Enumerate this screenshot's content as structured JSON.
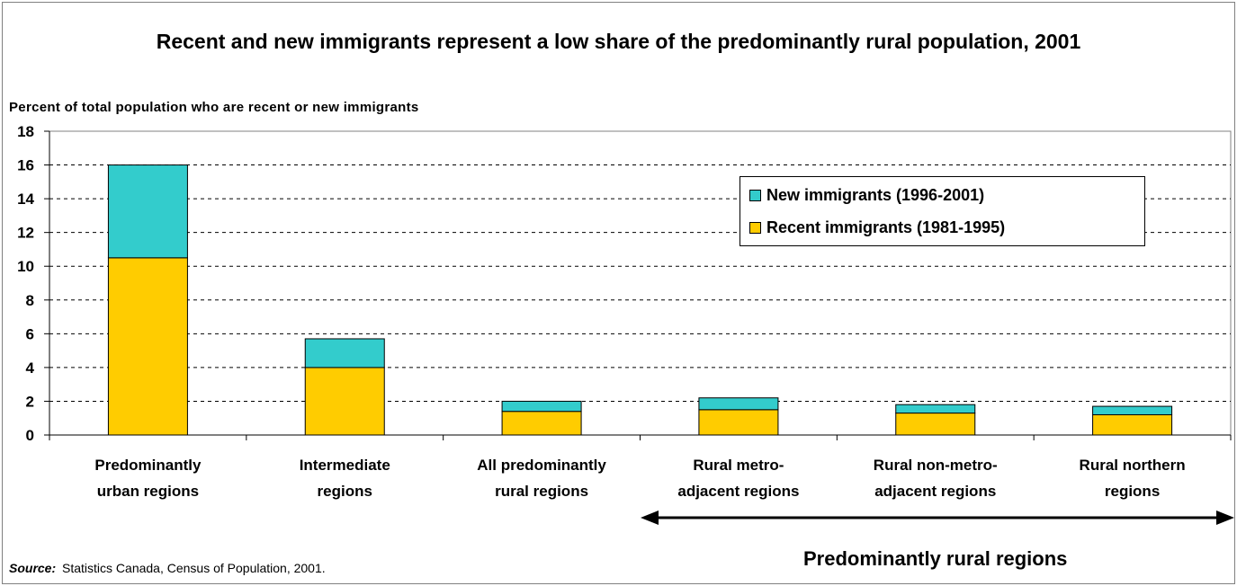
{
  "chart_data": {
    "type": "bar",
    "stacked": true,
    "title": "Recent and new immigrants represent a low share of the predominantly rural population, 2001",
    "ylabel": "Percent of total population who are recent or new immigrants",
    "xlabel": "",
    "ylim": [
      0,
      18
    ],
    "yticks": [
      0,
      2,
      4,
      6,
      8,
      10,
      12,
      14,
      16,
      18
    ],
    "grid": "horizontal dashed",
    "legend_position": "top-right",
    "categories": [
      [
        "Predominantly",
        "urban regions"
      ],
      [
        "Intermediate",
        "regions"
      ],
      [
        "All predominantly",
        "rural regions"
      ],
      [
        "Rural metro-",
        "adjacent regions"
      ],
      [
        "Rural non-metro-",
        "adjacent regions"
      ],
      [
        "Rural northern",
        "regions"
      ]
    ],
    "series": [
      {
        "name": "Recent immigrants (1981-1995)",
        "color": "#FFCC00",
        "values": [
          10.5,
          4.0,
          1.4,
          1.5,
          1.3,
          1.2
        ]
      },
      {
        "name": "New immigrants (1996-2001)",
        "color": "#33CCCC",
        "values": [
          5.5,
          1.7,
          0.6,
          0.7,
          0.5,
          0.5
        ]
      }
    ]
  },
  "legend": {
    "items": [
      {
        "label": "New immigrants (1996-2001)",
        "color": "#33CCCC"
      },
      {
        "label": "Recent immigrants (1981-1995)",
        "color": "#FFCC00"
      }
    ]
  },
  "source": {
    "label": "Source:",
    "text": "Statistics Canada, Census of Population, 2001."
  },
  "group_label": "Predominantly rural regions"
}
